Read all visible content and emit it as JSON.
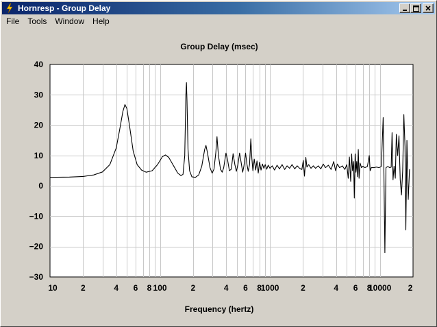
{
  "window": {
    "title": "Hornresp - Group Delay",
    "controls": {
      "minimize": "_",
      "maximize": "□",
      "close": "✕"
    }
  },
  "menu": [
    "File",
    "Tools",
    "Window",
    "Help"
  ],
  "chart_data": {
    "type": "line",
    "title": "Group Delay (msec)",
    "xlabel": "Frequency (hertz)",
    "ylabel": "",
    "x_scale": "log",
    "xlim": [
      10,
      20000
    ],
    "ylim": [
      -30,
      40
    ],
    "grid": true,
    "y_ticks": [
      40,
      30,
      20,
      10,
      0,
      -10,
      -20,
      -30
    ],
    "y_tick_labels": [
      "40",
      "30",
      "20",
      "10",
      "0",
      "−10",
      "−20",
      "−30"
    ],
    "x_ticks": [
      {
        "value": 10,
        "label": "10"
      },
      {
        "value": 20,
        "label": "2"
      },
      {
        "value": 40,
        "label": "4"
      },
      {
        "value": 60,
        "label": "6"
      },
      {
        "value": 80,
        "label": "8"
      },
      {
        "value": 100,
        "label": "100"
      },
      {
        "value": 200,
        "label": "2"
      },
      {
        "value": 400,
        "label": "4"
      },
      {
        "value": 600,
        "label": "6"
      },
      {
        "value": 800,
        "label": "8"
      },
      {
        "value": 1000,
        "label": "1000"
      },
      {
        "value": 2000,
        "label": "2"
      },
      {
        "value": 4000,
        "label": "4"
      },
      {
        "value": 6000,
        "label": "6"
      },
      {
        "value": 8000,
        "label": "8"
      },
      {
        "value": 10000,
        "label": "10000"
      },
      {
        "value": 20000,
        "label": "2"
      }
    ],
    "series": [
      {
        "color": "#000000",
        "points": [
          [
            10,
            2.8
          ],
          [
            15,
            2.9
          ],
          [
            20,
            3.1
          ],
          [
            25,
            3.6
          ],
          [
            30,
            4.6
          ],
          [
            35,
            7.0
          ],
          [
            40,
            12.5
          ],
          [
            43,
            18.5
          ],
          [
            46,
            24.5
          ],
          [
            48,
            26.8
          ],
          [
            50,
            25.5
          ],
          [
            53,
            19.5
          ],
          [
            57,
            11.5
          ],
          [
            62,
            7.0
          ],
          [
            68,
            5.2
          ],
          [
            75,
            4.5
          ],
          [
            85,
            5.0
          ],
          [
            95,
            7.0
          ],
          [
            105,
            9.6
          ],
          [
            112,
            10.2
          ],
          [
            120,
            9.4
          ],
          [
            132,
            6.8
          ],
          [
            145,
            4.2
          ],
          [
            155,
            3.4
          ],
          [
            162,
            3.8
          ],
          [
            168,
            10
          ],
          [
            172,
            30
          ],
          [
            174,
            34
          ],
          [
            176,
            28
          ],
          [
            180,
            12
          ],
          [
            186,
            5.0
          ],
          [
            195,
            3.0
          ],
          [
            210,
            2.8
          ],
          [
            225,
            3.6
          ],
          [
            240,
            6.5
          ],
          [
            255,
            12
          ],
          [
            262,
            13.3
          ],
          [
            270,
            11
          ],
          [
            285,
            6
          ],
          [
            298,
            4.2
          ],
          [
            310,
            5.5
          ],
          [
            322,
            11
          ],
          [
            330,
            16.2
          ],
          [
            340,
            10
          ],
          [
            355,
            5.5
          ],
          [
            368,
            4.5
          ],
          [
            380,
            6
          ],
          [
            398,
            10.8
          ],
          [
            412,
            8.5
          ],
          [
            428,
            5.0
          ],
          [
            445,
            5.5
          ],
          [
            462,
            10.6
          ],
          [
            480,
            7.0
          ],
          [
            495,
            4.8
          ],
          [
            512,
            7.0
          ],
          [
            530,
            10.8
          ],
          [
            548,
            7.5
          ],
          [
            565,
            4.5
          ],
          [
            580,
            6.5
          ],
          [
            600,
            10.8
          ],
          [
            618,
            7.0
          ],
          [
            635,
            4.8
          ],
          [
            652,
            7.0
          ],
          [
            670,
            15.5
          ],
          [
            685,
            9.0
          ],
          [
            700,
            5.0
          ],
          [
            720,
            8.8
          ],
          [
            742,
            5.2
          ],
          [
            762,
            8.2
          ],
          [
            782,
            4.2
          ],
          [
            805,
            7.8
          ],
          [
            830,
            5.2
          ],
          [
            855,
            7.2
          ],
          [
            880,
            5.8
          ],
          [
            905,
            7.0
          ],
          [
            935,
            5.5
          ],
          [
            965,
            6.8
          ],
          [
            1000,
            5.8
          ],
          [
            1050,
            6.6
          ],
          [
            1100,
            5.2
          ],
          [
            1160,
            6.8
          ],
          [
            1220,
            5.6
          ],
          [
            1290,
            7.0
          ],
          [
            1360,
            5.4
          ],
          [
            1430,
            6.6
          ],
          [
            1510,
            5.8
          ],
          [
            1590,
            7.0
          ],
          [
            1680,
            5.6
          ],
          [
            1770,
            6.6
          ],
          [
            1860,
            5.8
          ],
          [
            1950,
            5.4
          ],
          [
            2010,
            8.4
          ],
          [
            2060,
            3.2
          ],
          [
            2120,
            9.4
          ],
          [
            2170,
            6.2
          ],
          [
            2250,
            7.0
          ],
          [
            2360,
            5.8
          ],
          [
            2480,
            6.6
          ],
          [
            2600,
            5.8
          ],
          [
            2750,
            6.6
          ],
          [
            2900,
            5.6
          ],
          [
            3050,
            7.2
          ],
          [
            3200,
            6.0
          ],
          [
            3400,
            6.8
          ],
          [
            3600,
            5.4
          ],
          [
            3800,
            8.0
          ],
          [
            3950,
            5.0
          ],
          [
            4100,
            7.2
          ],
          [
            4300,
            6.0
          ],
          [
            4550,
            6.6
          ],
          [
            4800,
            5.4
          ],
          [
            5000,
            7.0
          ],
          [
            5150,
            2.5
          ],
          [
            5280,
            9.5
          ],
          [
            5420,
            1.5
          ],
          [
            5530,
            10.5
          ],
          [
            5640,
            5.0
          ],
          [
            5760,
            8.0
          ],
          [
            5850,
            -4.0
          ],
          [
            5950,
            10.5
          ],
          [
            6050,
            4.5
          ],
          [
            6150,
            8.0
          ],
          [
            6240,
            3.0
          ],
          [
            6360,
            12.0
          ],
          [
            6460,
            2.5
          ],
          [
            6600,
            7.5
          ],
          [
            6800,
            6.0
          ],
          [
            7000,
            6.5
          ],
          [
            7300,
            6.0
          ],
          [
            7700,
            6.4
          ],
          [
            8000,
            10.0
          ],
          [
            8150,
            5.0
          ],
          [
            8350,
            6.0
          ],
          [
            8800,
            6.0
          ],
          [
            9300,
            6.2
          ],
          [
            9800,
            6.0
          ],
          [
            10300,
            6.4
          ],
          [
            10700,
            22.5
          ],
          [
            10850,
            6.0
          ],
          [
            11100,
            -22.0
          ],
          [
            11350,
            6.0
          ],
          [
            11800,
            6.4
          ],
          [
            12300,
            6.0
          ],
          [
            12650,
            6.2
          ],
          [
            12900,
            17.5
          ],
          [
            13150,
            2.0
          ],
          [
            13450,
            6.5
          ],
          [
            13800,
            2.5
          ],
          [
            14100,
            17.0
          ],
          [
            14500,
            10.0
          ],
          [
            14900,
            16.5
          ],
          [
            15300,
            2.0
          ],
          [
            15700,
            -3.0
          ],
          [
            16100,
            5.0
          ],
          [
            16500,
            23.5
          ],
          [
            16900,
            13.0
          ],
          [
            17200,
            -14.5
          ],
          [
            17600,
            15.0
          ],
          [
            18100,
            -4.5
          ],
          [
            18600,
            5.5
          ]
        ]
      }
    ]
  }
}
